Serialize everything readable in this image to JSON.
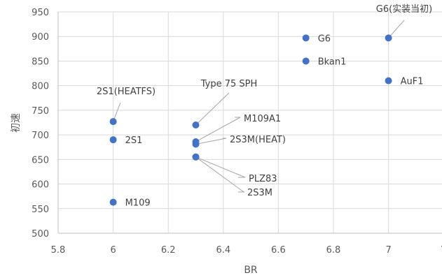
{
  "chart_data": {
    "type": "scatter",
    "title": "",
    "xlabel": "BR",
    "ylabel": "初速",
    "xlim": [
      5.8,
      7.0
    ],
    "ylim": [
      500,
      950
    ],
    "x_ticks": [
      "5.8",
      "6",
      "6.2",
      "6.4",
      "6.6",
      "6.8",
      "7",
      "7"
    ],
    "y_ticks": [
      "500",
      "550",
      "600",
      "650",
      "700",
      "750",
      "800",
      "850",
      "900",
      "950"
    ],
    "grid": true,
    "legend": "none",
    "marker_color": "#4472C4",
    "points": [
      {
        "label": "2S1(HEATFS)",
        "x": 6.0,
        "y": 727
      },
      {
        "label": "2S1",
        "x": 6.0,
        "y": 690
      },
      {
        "label": "M109",
        "x": 6.0,
        "y": 563
      },
      {
        "label": "Type 75 SPH",
        "x": 6.3,
        "y": 720
      },
      {
        "label": "M109A1",
        "x": 6.3,
        "y": 686
      },
      {
        "label": "2S3M(HEAT)",
        "x": 6.3,
        "y": 681
      },
      {
        "label": "PLZ83",
        "x": 6.3,
        "y": 655
      },
      {
        "label": "2S3M",
        "x": 6.3,
        "y": 655
      },
      {
        "label": "G6",
        "x": 6.7,
        "y": 897
      },
      {
        "label": "Bkan1",
        "x": 6.7,
        "y": 850
      },
      {
        "label": "AuF1",
        "x": 7.0,
        "y": 810
      },
      {
        "label": "G6(实装当初)",
        "x": 7.0,
        "y": 897
      }
    ]
  }
}
